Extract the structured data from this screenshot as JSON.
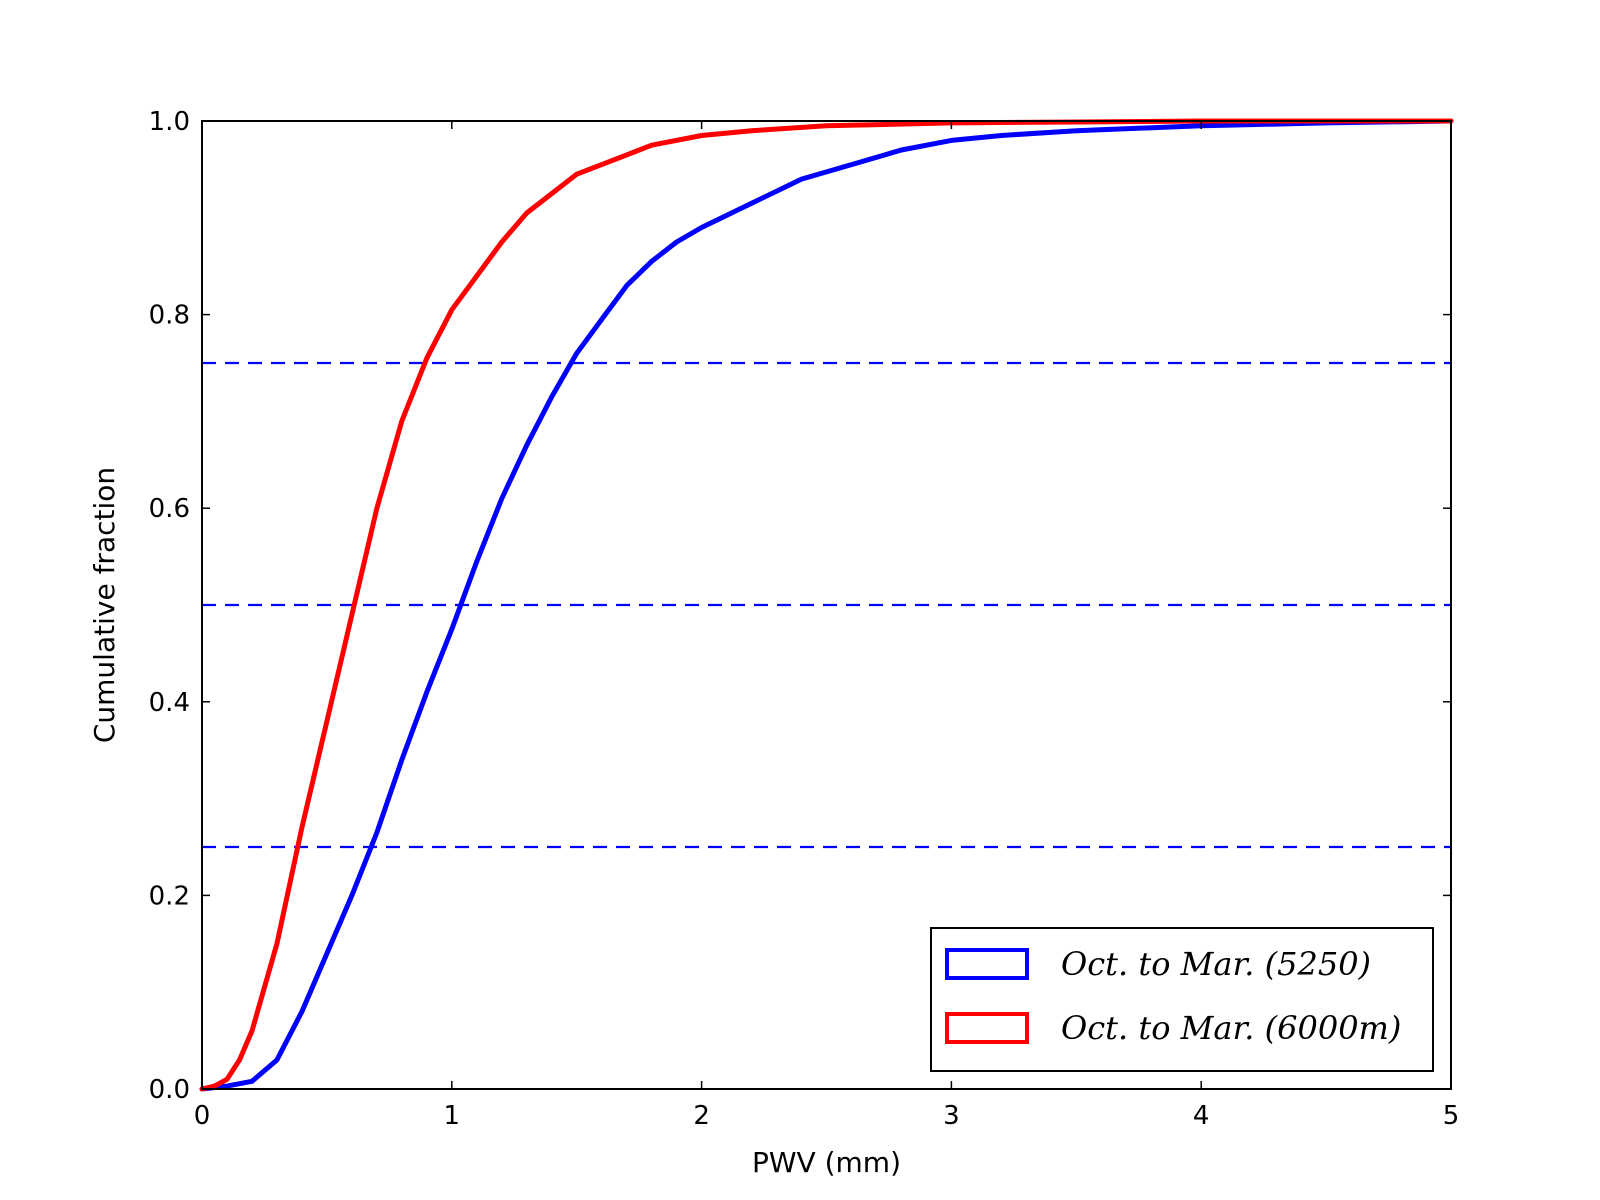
{
  "chart_data": {
    "type": "line",
    "title": "",
    "xlabel": "PWV (mm)",
    "ylabel": "Cumulative fraction",
    "xlim": [
      0,
      5
    ],
    "ylim": [
      0,
      1.0
    ],
    "xticks": [
      0,
      1,
      2,
      3,
      4,
      5
    ],
    "xtick_labels": [
      "0",
      "1",
      "2",
      "3",
      "4",
      "5"
    ],
    "yticks": [
      0,
      0.2,
      0.4,
      0.6,
      0.8,
      1.0
    ],
    "ytick_labels": [
      "0.0",
      "0.2",
      "0.4",
      "0.6",
      "0.8",
      "1.0"
    ],
    "grid": false,
    "legend_position": "lower-right",
    "reference_lines": {
      "orientation": "horizontal",
      "style": "dashed",
      "color": "#0000ff",
      "values": [
        0.25,
        0.5,
        0.75
      ]
    },
    "series": [
      {
        "name": "Oct. to Mar. (5250)",
        "color": "#0000ff",
        "x": [
          0,
          0.1,
          0.2,
          0.3,
          0.4,
          0.5,
          0.6,
          0.7,
          0.8,
          0.9,
          1.0,
          1.1,
          1.2,
          1.3,
          1.4,
          1.5,
          1.6,
          1.7,
          1.8,
          1.9,
          2.0,
          2.2,
          2.4,
          2.6,
          2.8,
          3.0,
          3.2,
          3.5,
          4.0,
          4.5,
          5.0
        ],
        "y": [
          0,
          0.003,
          0.008,
          0.03,
          0.08,
          0.14,
          0.2,
          0.265,
          0.34,
          0.41,
          0.475,
          0.545,
          0.61,
          0.665,
          0.715,
          0.76,
          0.795,
          0.83,
          0.855,
          0.875,
          0.89,
          0.915,
          0.94,
          0.955,
          0.97,
          0.98,
          0.985,
          0.99,
          0.995,
          0.998,
          1.0
        ]
      },
      {
        "name": "Oct. to Mar. (6000m)",
        "color": "#ff0000",
        "x": [
          0,
          0.05,
          0.1,
          0.15,
          0.2,
          0.3,
          0.4,
          0.5,
          0.6,
          0.7,
          0.8,
          0.9,
          1.0,
          1.1,
          1.2,
          1.3,
          1.4,
          1.5,
          1.6,
          1.8,
          2.0,
          2.2,
          2.5,
          3.0,
          3.5,
          4.0,
          5.0
        ],
        "y": [
          0,
          0.003,
          0.01,
          0.03,
          0.06,
          0.15,
          0.27,
          0.38,
          0.49,
          0.6,
          0.69,
          0.755,
          0.805,
          0.84,
          0.875,
          0.905,
          0.925,
          0.945,
          0.955,
          0.975,
          0.985,
          0.99,
          0.995,
          0.998,
          0.999,
          1.0,
          1.0
        ]
      }
    ]
  }
}
